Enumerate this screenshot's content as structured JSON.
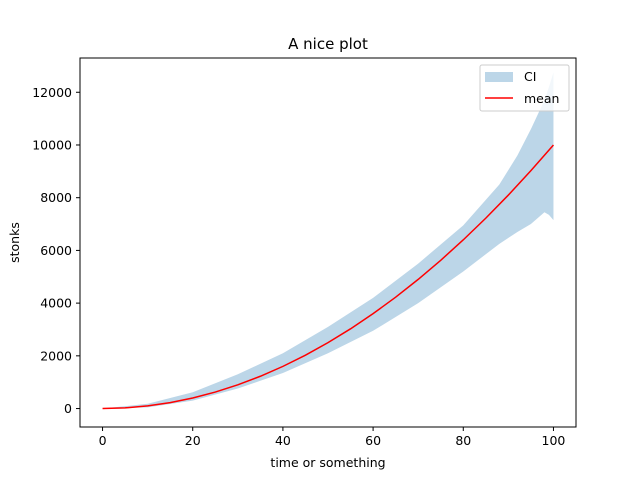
{
  "chart_data": {
    "type": "area",
    "title": "A nice plot",
    "xlabel": "time or something",
    "ylabel": "stonks",
    "xlim": [
      -5,
      105
    ],
    "ylim": [
      -700,
      13300
    ],
    "xticks": [
      0,
      20,
      40,
      60,
      80,
      100
    ],
    "yticks": [
      0,
      2000,
      4000,
      6000,
      8000,
      10000,
      12000
    ],
    "grid": false,
    "legend_position": "top-right",
    "series": [
      {
        "name": "CI",
        "kind": "band",
        "color": "#bcd6e8",
        "x": [
          0,
          10,
          20,
          30,
          40,
          50,
          60,
          70,
          80,
          88,
          92,
          95,
          98,
          99,
          100
        ],
        "lower": [
          0,
          45,
          300,
          760,
          1350,
          2100,
          2950,
          4000,
          5200,
          6250,
          6700,
          7000,
          7450,
          7350,
          7150
        ],
        "upper": [
          0,
          180,
          620,
          1300,
          2100,
          3100,
          4200,
          5500,
          6950,
          8500,
          9600,
          10600,
          11700,
          12200,
          12750
        ]
      },
      {
        "name": "mean",
        "kind": "line",
        "color": "#ff0000",
        "x": [
          0,
          5,
          10,
          15,
          20,
          25,
          30,
          35,
          40,
          45,
          50,
          55,
          60,
          65,
          70,
          75,
          80,
          85,
          90,
          95,
          100
        ],
        "values": [
          0,
          25,
          100,
          225,
          400,
          625,
          900,
          1225,
          1600,
          2025,
          2500,
          3025,
          3600,
          4225,
          4900,
          5625,
          6400,
          7225,
          8100,
          9025,
          10000
        ]
      }
    ]
  }
}
